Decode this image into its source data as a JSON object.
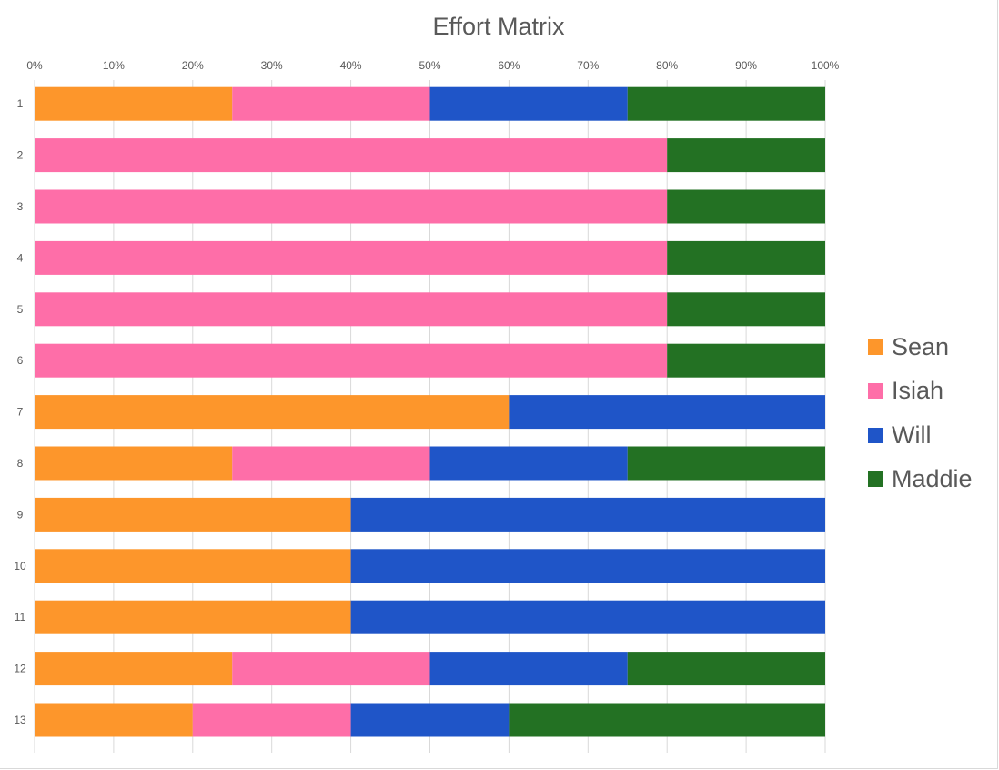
{
  "chart_data": {
    "type": "bar",
    "orientation": "horizontal",
    "stacking": "percent",
    "title": "Effort Matrix",
    "xlabel": "",
    "ylabel": "",
    "xlim": [
      0,
      100
    ],
    "x_ticks": [
      "0%",
      "10%",
      "20%",
      "30%",
      "40%",
      "50%",
      "60%",
      "70%",
      "80%",
      "90%",
      "100%"
    ],
    "categories": [
      "1",
      "2",
      "3",
      "4",
      "5",
      "6",
      "7",
      "8",
      "9",
      "10",
      "11",
      "12",
      "13"
    ],
    "series": [
      {
        "name": "Sean",
        "color": "#fd962b",
        "values": [
          25,
          0,
          0,
          0,
          0,
          0,
          60,
          25,
          40,
          40,
          40,
          25,
          20
        ]
      },
      {
        "name": "Isiah",
        "color": "#fe6ea8",
        "values": [
          25,
          80,
          80,
          80,
          80,
          80,
          0,
          25,
          0,
          0,
          0,
          25,
          20
        ]
      },
      {
        "name": "Will",
        "color": "#1f55c8",
        "values": [
          25,
          0,
          0,
          0,
          0,
          0,
          40,
          25,
          60,
          60,
          60,
          25,
          20
        ]
      },
      {
        "name": "Maddie",
        "color": "#237123",
        "values": [
          25,
          20,
          20,
          20,
          20,
          20,
          0,
          25,
          0,
          0,
          0,
          25,
          40
        ]
      }
    ],
    "legend_position": "right",
    "grid": "vertical"
  }
}
